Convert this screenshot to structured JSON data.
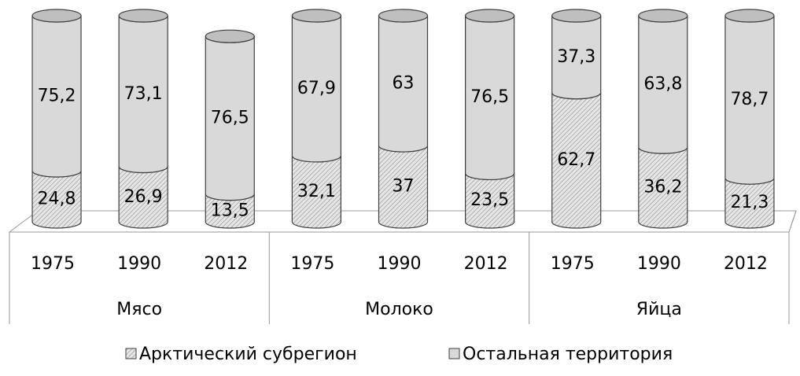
{
  "chart_data": {
    "type": "cylinder-stacked",
    "categories": [
      "1975",
      "1990",
      "2012",
      "1975",
      "1990",
      "2012",
      "1975",
      "1990",
      "2012"
    ],
    "groups": [
      "Мясо",
      "Молоко",
      "Яйца"
    ],
    "ylim": [
      0,
      100
    ],
    "series": [
      {
        "name": "Арктический субрегион",
        "color": "#d9d9d9",
        "pattern": "diagonal",
        "values": [
          24.8,
          26.9,
          13.5,
          32.1,
          37,
          23.5,
          62.7,
          36.2,
          21.3
        ],
        "value_labels": [
          "24,8",
          "26,9",
          "13,5",
          "32,1",
          "37",
          "23,5",
          "62,7",
          "36,2",
          "21,3"
        ]
      },
      {
        "name": "Остальная территория",
        "color": "#d9d9d9",
        "values": [
          75.2,
          73.1,
          76.5,
          67.9,
          63,
          76.5,
          37.3,
          63.8,
          78.7
        ],
        "value_labels": [
          "75,2",
          "73,1",
          "76,5",
          "67,9",
          "63",
          "76,5",
          "37,3",
          "63,8",
          "78,7"
        ]
      }
    ]
  }
}
